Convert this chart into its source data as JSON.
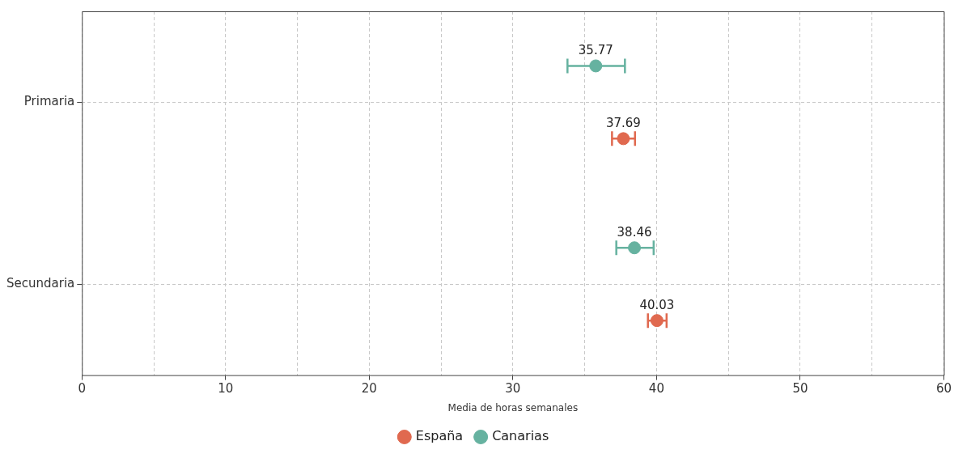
{
  "chart_data": {
    "type": "scatter",
    "orientation": "horizontal",
    "xlabel": "Media de horas semanales",
    "categories": [
      "Primaria",
      "Secundaria"
    ],
    "series": [
      {
        "name": "España",
        "color": "#e0694f",
        "values": [
          37.69,
          40.03
        ],
        "errors": [
          [
            36.9,
            38.5
          ],
          [
            39.4,
            40.7
          ]
        ]
      },
      {
        "name": "Canarias",
        "color": "#66b2a0",
        "values": [
          35.77,
          38.46
        ],
        "errors": [
          [
            33.8,
            37.8
          ],
          [
            37.2,
            39.8
          ]
        ]
      }
    ],
    "xlim": [
      0,
      60
    ],
    "xticks": [
      0,
      {
        "value": 5,
        "label": null
      },
      10,
      {
        "value": 15,
        "label": null
      },
      20,
      {
        "value": 25,
        "label": null
      },
      30,
      {
        "value": 35,
        "label": null
      },
      40,
      {
        "value": 45,
        "label": null
      },
      50,
      {
        "value": 55,
        "label": null
      },
      60
    ],
    "grid": true,
    "legend": "bottom",
    "marker": "circle",
    "data_labels": true
  }
}
